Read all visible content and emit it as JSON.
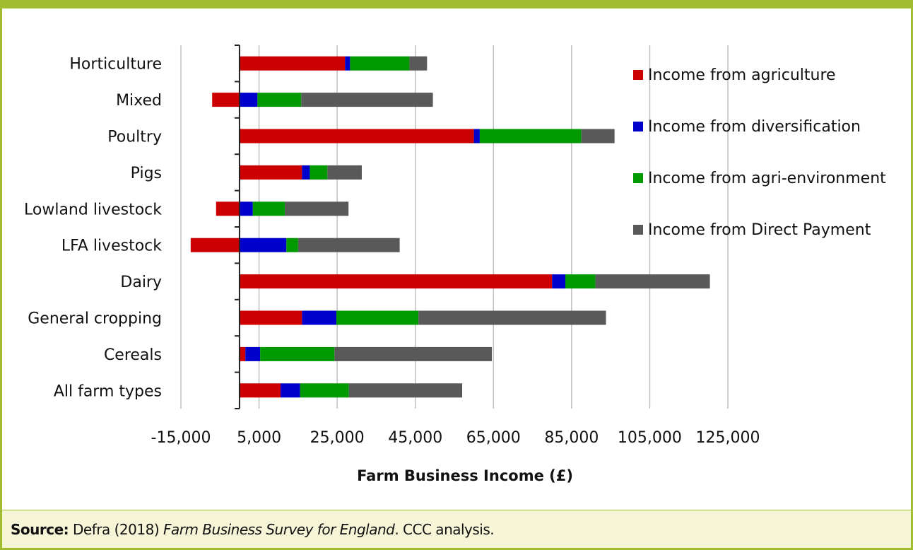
{
  "colors": {
    "frame": "#a1bc2f",
    "footer_bg": "#f6f5d8",
    "agriculture": "#cc0000",
    "diversification": "#0000cc",
    "agri_environment": "#009900",
    "direct_payment": "#595959",
    "gridline": "#c0c0c0"
  },
  "chart_data": {
    "type": "bar",
    "orientation": "horizontal",
    "stacked": true,
    "categories": [
      "Horticulture",
      "Mixed",
      "Poultry",
      "Pigs",
      "Lowland livestock",
      "LFA livestock",
      "Dairy",
      "General cropping",
      "Cereals",
      "All farm types"
    ],
    "series": [
      {
        "name": "Income from agriculture",
        "color": "#cc0000",
        "values": [
          27000,
          -7000,
          60000,
          16000,
          -6000,
          -12500,
          80000,
          16000,
          1500,
          10500
        ]
      },
      {
        "name": "Income from diversification",
        "color": "#0000cc",
        "values": [
          1300,
          4600,
          1500,
          2000,
          3400,
          12000,
          3400,
          8800,
          3800,
          5000
        ]
      },
      {
        "name": "Income from agri-environment",
        "color": "#009900",
        "values": [
          15200,
          11200,
          26000,
          4500,
          8200,
          3000,
          7700,
          21000,
          19000,
          12500
        ]
      },
      {
        "name": "Income from Direct Payment",
        "color": "#595959",
        "values": [
          4500,
          33700,
          8500,
          8800,
          16300,
          26000,
          29300,
          48000,
          40300,
          29000
        ]
      }
    ],
    "xlim": [
      -15000,
      125000
    ],
    "xticks": [
      "-15,000",
      "5,000",
      "25,000",
      "45,000",
      "65,000",
      "85,000",
      "105,000",
      "125,000"
    ],
    "xtick_values": [
      -15000,
      5000,
      25000,
      45000,
      65000,
      85000,
      105000,
      125000
    ],
    "xlabel": "Farm Business Income (£)",
    "ylabel": "",
    "title": "",
    "grid": "vertical",
    "legend_position": "top-right"
  },
  "footer": {
    "label": "Source:",
    "text_before": "Defra (2018)",
    "title_italic": "Farm Business Survey for England",
    "text_after": ". CCC analysis."
  }
}
